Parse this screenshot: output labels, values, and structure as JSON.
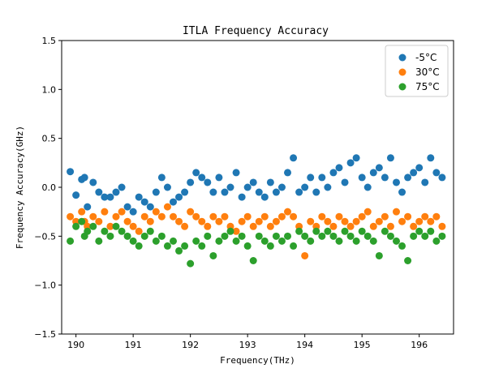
{
  "chart_data": {
    "type": "scatter",
    "title": "ITLA Frequency Accuracy",
    "xlabel": "Frequency(THz)",
    "ylabel": "Frequency Accuracy(GHz)",
    "xlim": [
      189.75,
      196.6
    ],
    "ylim": [
      -1.5,
      1.5
    ],
    "xticks": [
      190,
      191,
      192,
      193,
      194,
      195,
      196
    ],
    "yticks": [
      -1.5,
      -1.0,
      -0.5,
      0.0,
      0.5,
      1.0,
      1.5
    ],
    "xtick_labels": [
      "190",
      "191",
      "192",
      "193",
      "194",
      "195",
      "196"
    ],
    "ytick_labels": [
      "−1.5",
      "−1.0",
      "−0.5",
      "0.0",
      "0.5",
      "1.0",
      "1.5"
    ],
    "grid": false,
    "legend_position": "top-right",
    "series": [
      {
        "name": "-5°C",
        "color": "#1f77b4",
        "x": [
          189.9,
          190.0,
          190.1,
          190.15,
          190.2,
          190.3,
          190.4,
          190.5,
          190.6,
          190.7,
          190.8,
          190.9,
          191.0,
          191.1,
          191.2,
          191.3,
          191.4,
          191.5,
          191.6,
          191.7,
          191.8,
          191.9,
          192.0,
          192.1,
          192.2,
          192.3,
          192.4,
          192.5,
          192.6,
          192.7,
          192.8,
          192.9,
          193.0,
          193.1,
          193.2,
          193.3,
          193.4,
          193.5,
          193.6,
          193.7,
          193.8,
          193.9,
          194.0,
          194.1,
          194.2,
          194.3,
          194.4,
          194.5,
          194.6,
          194.7,
          194.8,
          194.9,
          195.0,
          195.1,
          195.2,
          195.3,
          195.4,
          195.5,
          195.6,
          195.7,
          195.8,
          195.9,
          196.0,
          196.1,
          196.2,
          196.3,
          196.4
        ],
        "y": [
          0.16,
          -0.08,
          0.08,
          0.1,
          -0.2,
          0.05,
          -0.05,
          -0.1,
          -0.1,
          -0.05,
          0.0,
          -0.2,
          -0.25,
          -0.1,
          -0.15,
          -0.2,
          -0.05,
          0.1,
          0.0,
          -0.15,
          -0.1,
          -0.05,
          0.05,
          0.15,
          0.1,
          0.05,
          -0.05,
          0.1,
          -0.05,
          0.0,
          0.15,
          -0.1,
          0.0,
          0.05,
          -0.05,
          -0.1,
          0.05,
          -0.05,
          0.0,
          0.15,
          0.3,
          -0.05,
          0.0,
          0.1,
          -0.05,
          0.1,
          0.0,
          0.15,
          0.2,
          0.05,
          0.25,
          0.3,
          0.1,
          0.0,
          0.15,
          0.2,
          0.1,
          0.3,
          0.05,
          -0.05,
          0.1,
          0.15,
          0.2,
          0.05,
          0.3,
          0.15,
          0.1
        ]
      },
      {
        "name": "30°C",
        "color": "#ff7f0e",
        "x": [
          189.9,
          190.0,
          190.1,
          190.15,
          190.2,
          190.3,
          190.4,
          190.5,
          190.6,
          190.7,
          190.8,
          190.9,
          191.0,
          191.1,
          191.2,
          191.3,
          191.4,
          191.5,
          191.6,
          191.7,
          191.8,
          191.9,
          192.0,
          192.1,
          192.2,
          192.3,
          192.4,
          192.5,
          192.6,
          192.7,
          192.8,
          192.9,
          193.0,
          193.1,
          193.2,
          193.3,
          193.4,
          193.5,
          193.6,
          193.7,
          193.8,
          193.9,
          194.0,
          194.1,
          194.2,
          194.3,
          194.4,
          194.5,
          194.6,
          194.7,
          194.8,
          194.9,
          195.0,
          195.1,
          195.2,
          195.3,
          195.4,
          195.5,
          195.6,
          195.7,
          195.8,
          195.9,
          196.0,
          196.1,
          196.2,
          196.3,
          196.4
        ],
        "y": [
          -0.3,
          -0.35,
          -0.25,
          -0.35,
          -0.4,
          -0.3,
          -0.35,
          -0.25,
          -0.4,
          -0.3,
          -0.25,
          -0.35,
          -0.4,
          -0.45,
          -0.3,
          -0.35,
          -0.25,
          -0.3,
          -0.2,
          -0.3,
          -0.35,
          -0.4,
          -0.25,
          -0.3,
          -0.35,
          -0.4,
          -0.3,
          -0.35,
          -0.3,
          -0.4,
          -0.45,
          -0.35,
          -0.3,
          -0.4,
          -0.35,
          -0.3,
          -0.4,
          -0.35,
          -0.3,
          -0.25,
          -0.3,
          -0.4,
          -0.7,
          -0.35,
          -0.4,
          -0.3,
          -0.35,
          -0.4,
          -0.3,
          -0.35,
          -0.4,
          -0.35,
          -0.3,
          -0.25,
          -0.4,
          -0.35,
          -0.3,
          -0.4,
          -0.25,
          -0.35,
          -0.3,
          -0.4,
          -0.35,
          -0.3,
          -0.35,
          -0.3,
          -0.4
        ]
      },
      {
        "name": "75°C",
        "color": "#2ca02c",
        "x": [
          189.9,
          190.0,
          190.1,
          190.15,
          190.2,
          190.3,
          190.4,
          190.5,
          190.6,
          190.7,
          190.8,
          190.9,
          191.0,
          191.1,
          191.2,
          191.3,
          191.4,
          191.5,
          191.6,
          191.7,
          191.8,
          191.9,
          192.0,
          192.1,
          192.2,
          192.3,
          192.4,
          192.5,
          192.6,
          192.7,
          192.8,
          192.9,
          193.0,
          193.1,
          193.2,
          193.3,
          193.4,
          193.5,
          193.6,
          193.7,
          193.8,
          193.9,
          194.0,
          194.1,
          194.2,
          194.3,
          194.4,
          194.5,
          194.6,
          194.7,
          194.8,
          194.9,
          195.0,
          195.1,
          195.2,
          195.3,
          195.4,
          195.5,
          195.6,
          195.7,
          195.8,
          195.9,
          196.0,
          196.1,
          196.2,
          196.3,
          196.4
        ],
        "y": [
          -0.55,
          -0.4,
          -0.35,
          -0.5,
          -0.45,
          -0.4,
          -0.55,
          -0.45,
          -0.5,
          -0.4,
          -0.45,
          -0.5,
          -0.55,
          -0.6,
          -0.5,
          -0.45,
          -0.55,
          -0.5,
          -0.6,
          -0.55,
          -0.65,
          -0.6,
          -0.78,
          -0.55,
          -0.6,
          -0.5,
          -0.7,
          -0.55,
          -0.5,
          -0.45,
          -0.55,
          -0.5,
          -0.6,
          -0.75,
          -0.5,
          -0.55,
          -0.6,
          -0.5,
          -0.55,
          -0.5,
          -0.6,
          -0.45,
          -0.5,
          -0.55,
          -0.45,
          -0.5,
          -0.45,
          -0.5,
          -0.55,
          -0.45,
          -0.5,
          -0.55,
          -0.45,
          -0.5,
          -0.55,
          -0.7,
          -0.45,
          -0.5,
          -0.55,
          -0.6,
          -0.75,
          -0.5,
          -0.45,
          -0.5,
          -0.45,
          -0.55,
          -0.5
        ]
      }
    ]
  }
}
